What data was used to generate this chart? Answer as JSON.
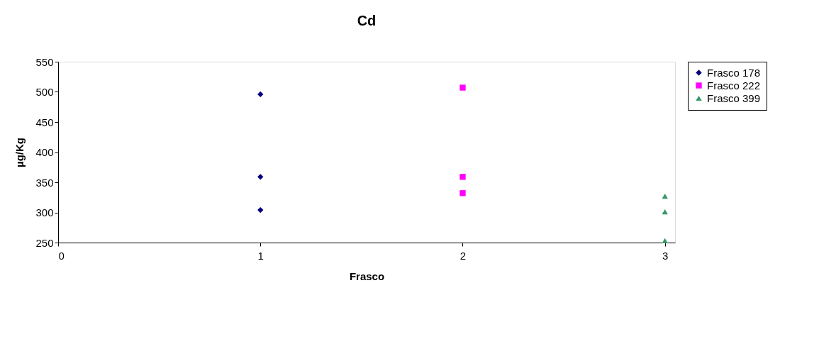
{
  "chart_data": {
    "type": "scatter",
    "title": "Cd",
    "xlabel": "Frasco",
    "ylabel": "µg/Kg",
    "xlim": [
      0,
      3.05
    ],
    "xticks": [
      0,
      1,
      2,
      3
    ],
    "ylim": [
      250,
      550
    ],
    "yticks": [
      250,
      300,
      350,
      400,
      450,
      500,
      550
    ],
    "grid": false,
    "legend": "right",
    "series": [
      {
        "name": "Frasco 178",
        "color": "#000080",
        "marker": "diamond",
        "x": [
          1,
          1,
          1
        ],
        "values": [
          496,
          359,
          304
        ]
      },
      {
        "name": "Frasco 222",
        "color": "#ff00ff",
        "marker": "square",
        "x": [
          2,
          2,
          2
        ],
        "values": [
          507,
          359,
          332
        ]
      },
      {
        "name": "Frasco 399",
        "color": "#339966",
        "marker": "triangle",
        "x": [
          3,
          3,
          3
        ],
        "values": [
          327,
          301,
          253
        ]
      }
    ]
  }
}
